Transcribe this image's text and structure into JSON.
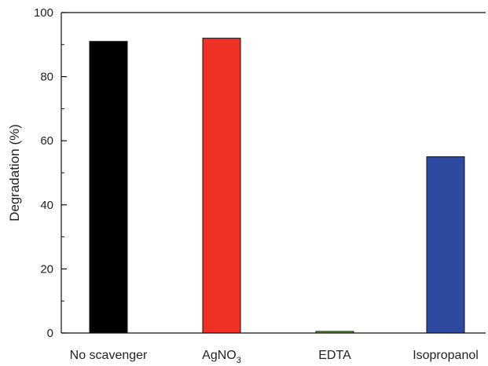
{
  "chart_data": {
    "type": "bar",
    "categories": [
      "No scavenger",
      "AgNO3",
      "EDTA",
      "Isopropanol"
    ],
    "category_display": [
      {
        "base": "No scavenger",
        "sub": ""
      },
      {
        "base": "AgNO",
        "sub": "3"
      },
      {
        "base": "EDTA",
        "sub": ""
      },
      {
        "base": "Isopropanol",
        "sub": ""
      }
    ],
    "values": [
      91,
      92,
      0.5,
      55
    ],
    "colors": [
      "#000000",
      "#ee3124",
      "#6dbd45",
      "#2e4a9e"
    ],
    "title": "",
    "xlabel": "",
    "ylabel": "Degradation (%)",
    "ylim": [
      0,
      100
    ],
    "yticks": [
      0,
      20,
      40,
      60,
      80,
      100
    ],
    "grid": false,
    "legend": "none"
  }
}
